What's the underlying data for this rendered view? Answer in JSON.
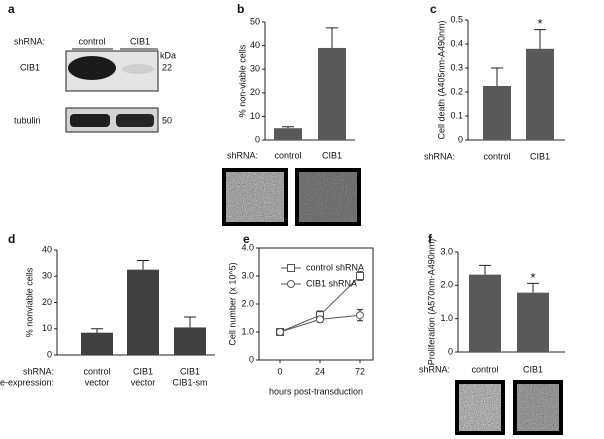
{
  "blot": {
    "label": "a",
    "row_label": "shRNA:",
    "lanes": [
      "control",
      "CIB1"
    ],
    "unit": "kDa",
    "bands": [
      {
        "name": "CIB1",
        "size": "22"
      },
      {
        "name": "tubulin",
        "size": "50"
      }
    ]
  },
  "chart_data": [
    {
      "type": "bar",
      "label": "b",
      "ylabel": "% non-viable cells",
      "category_label": "shRNA:",
      "categories": [
        "control",
        "CIB1"
      ],
      "values": [
        5,
        39
      ],
      "errors": [
        0.6,
        8.5
      ],
      "color": "#595959",
      "ylim": [
        0,
        50
      ],
      "yticks": [
        0,
        10,
        20,
        30,
        40,
        50
      ]
    },
    {
      "type": "bar",
      "label": "c",
      "ylabel": "Cell death (A405nm-A490nm)",
      "category_label": "shRNA:",
      "categories": [
        "control",
        "CIB1"
      ],
      "values": [
        0.225,
        0.38
      ],
      "errors": [
        0.075,
        0.08
      ],
      "color": "#595959",
      "ylim": [
        0,
        0.5
      ],
      "yticks": [
        0,
        0.1,
        0.2,
        0.3,
        0.4,
        0.5
      ],
      "annotations": [
        {
          "text": "*",
          "category": "CIB1"
        }
      ]
    },
    {
      "type": "bar",
      "label": "d",
      "ylabel": "% nonviable cells",
      "category_label": "shRNA:",
      "category_label2": "re-expression:",
      "categories": [
        "control",
        "CIB1",
        "CIB1"
      ],
      "categories2": [
        "vector",
        "vector",
        "CIB1-sm"
      ],
      "values": [
        8.5,
        32.5,
        10.5
      ],
      "errors": [
        1.5,
        3.5,
        4
      ],
      "color": "#404040",
      "ylim": [
        0,
        40
      ],
      "yticks": [
        0,
        10,
        20,
        30,
        40
      ]
    },
    {
      "type": "line",
      "label": "e",
      "ylabel": "Cell number (x 10^5)",
      "xlabel": "hours post-transduction",
      "categories": [
        "0",
        "24",
        "72"
      ],
      "ylim": [
        0,
        4
      ],
      "yticks": [
        0,
        {
          "value": 1,
          "label": "1.0"
        },
        {
          "value": 2,
          "label": "2.0"
        },
        {
          "value": 3,
          "label": "3.0"
        },
        {
          "value": 4,
          "label": "4.0"
        }
      ],
      "series": [
        {
          "name": "control shRNA",
          "marker": "square",
          "color": "#555555",
          "values": [
            1.0,
            1.6,
            3.0
          ],
          "errors": [
            0.05,
            0.15,
            0.15
          ]
        },
        {
          "name": "CIB1 shRNA",
          "marker": "circle",
          "color": "#555555",
          "values": [
            1.0,
            1.45,
            1.6
          ],
          "errors": [
            0.05,
            0.1,
            0.2
          ]
        }
      ]
    },
    {
      "type": "bar",
      "label": "f",
      "ylabel": "Proliferation (A570nm-A490nm)",
      "category_label": "shRNA:",
      "categories": [
        "control",
        "CIB1"
      ],
      "values": [
        2.32,
        1.78
      ],
      "errors": [
        0.28,
        0.28
      ],
      "color": "#595959",
      "ylim": [
        0,
        3
      ],
      "yticks": [
        0,
        {
          "value": 1,
          "label": "1.0"
        },
        {
          "value": 2,
          "label": "2.0"
        },
        {
          "value": 3,
          "label": "3.0"
        }
      ],
      "annotations": [
        {
          "text": "*",
          "category": "CIB1"
        }
      ]
    }
  ]
}
